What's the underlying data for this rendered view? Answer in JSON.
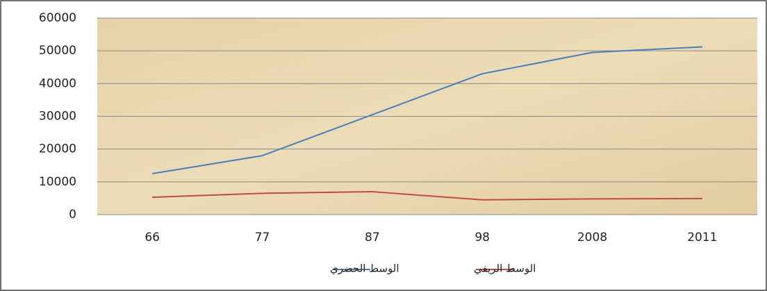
{
  "chart_data": {
    "type": "line",
    "categories": [
      "66",
      "77",
      "87",
      "98",
      "2008",
      "2011"
    ],
    "series": [
      {
        "name": "الوسط الحضري",
        "color": "#4a7ebb",
        "values": [
          12500,
          18000,
          30500,
          43000,
          49500,
          51200
        ]
      },
      {
        "name": "الوسط الريفي",
        "color": "#be4b48",
        "values": [
          5300,
          6500,
          7000,
          4500,
          4800,
          4900
        ]
      }
    ],
    "ylim": [
      0,
      60000
    ],
    "yticks": [
      0,
      10000,
      20000,
      30000,
      40000,
      50000,
      60000
    ],
    "grid": true
  }
}
